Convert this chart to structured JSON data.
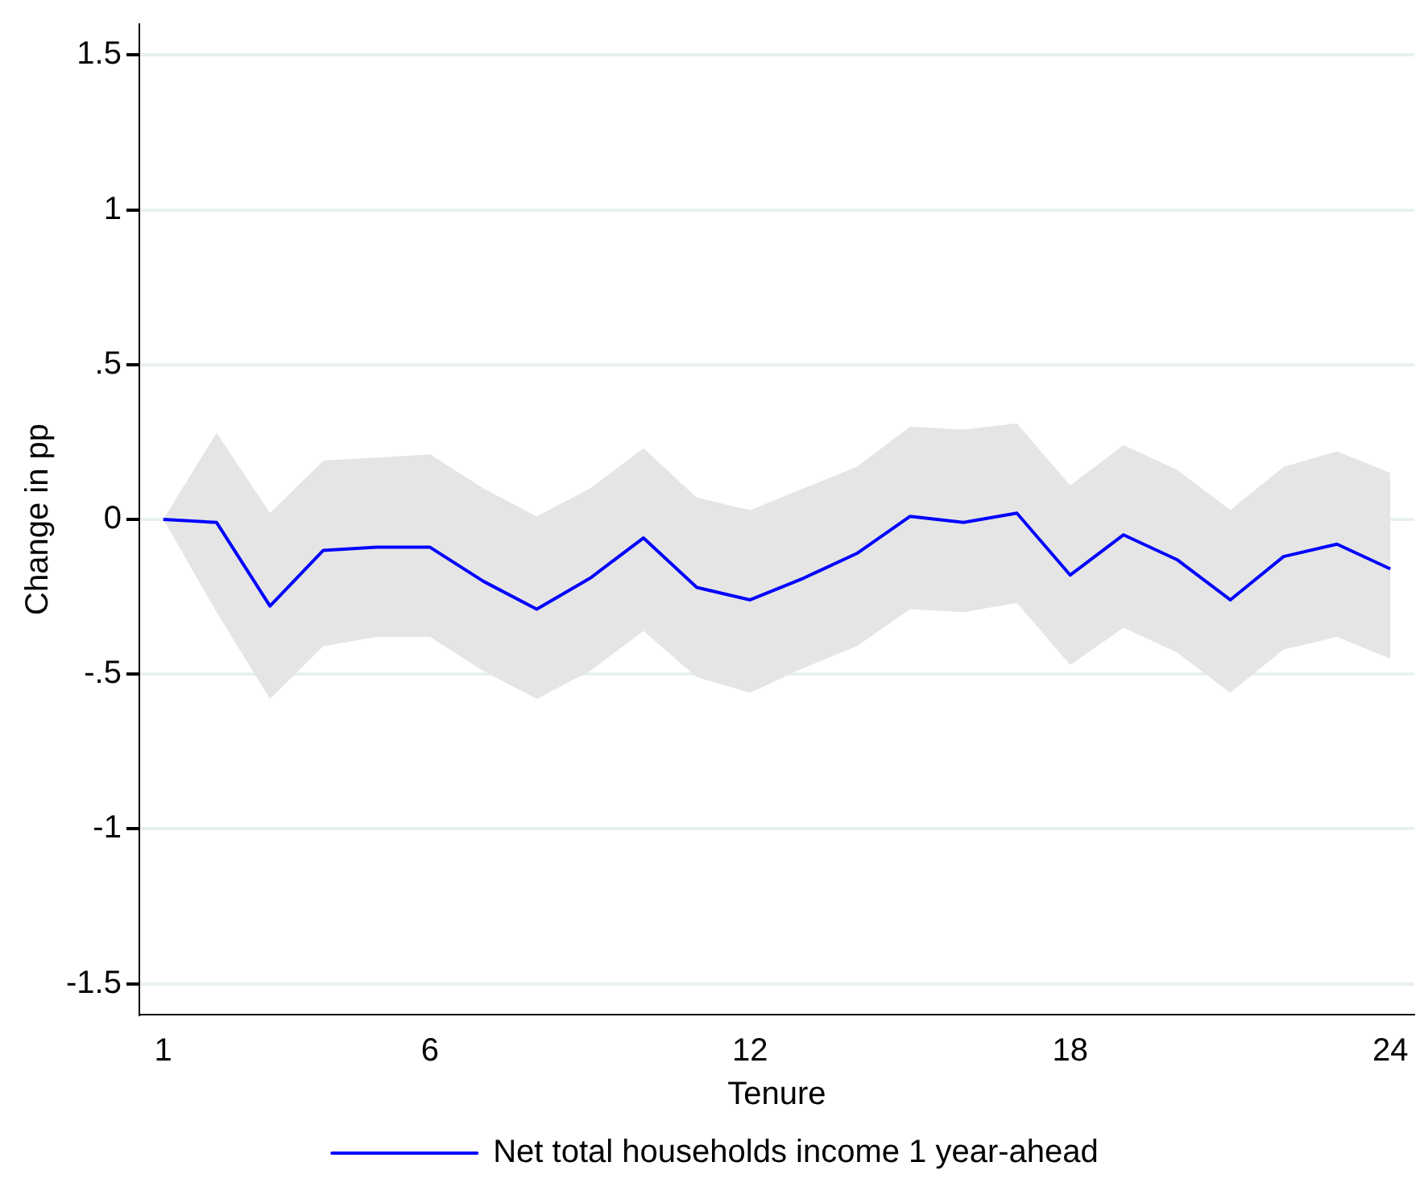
{
  "chart_data": {
    "type": "line",
    "xlabel": "Tenure",
    "ylabel": "Change in pp",
    "x": [
      1,
      2,
      3,
      4,
      5,
      6,
      7,
      8,
      9,
      10,
      11,
      12,
      13,
      14,
      15,
      16,
      17,
      18,
      19,
      20,
      21,
      22,
      23,
      24
    ],
    "series": [
      {
        "name": "Net total households income 1 year-ahead",
        "color": "#0000ff",
        "values": [
          0,
          -0.01,
          -0.28,
          -0.1,
          -0.09,
          -0.09,
          -0.2,
          -0.29,
          -0.19,
          -0.06,
          -0.22,
          -0.26,
          -0.19,
          -0.11,
          0.01,
          -0.01,
          0.02,
          -0.18,
          -0.05,
          -0.13,
          -0.26,
          -0.12,
          -0.08,
          -0.16
        ],
        "upper": [
          0,
          0.28,
          0.02,
          0.19,
          0.2,
          0.21,
          0.1,
          0.01,
          0.1,
          0.23,
          0.07,
          0.03,
          0.1,
          0.17,
          0.3,
          0.29,
          0.31,
          0.11,
          0.24,
          0.16,
          0.03,
          0.17,
          0.22,
          0.15
        ],
        "lower": [
          0,
          -0.3,
          -0.58,
          -0.41,
          -0.38,
          -0.38,
          -0.49,
          -0.58,
          -0.49,
          -0.36,
          -0.51,
          -0.56,
          -0.48,
          -0.41,
          -0.29,
          -0.3,
          -0.27,
          -0.47,
          -0.35,
          -0.43,
          -0.56,
          -0.42,
          -0.38,
          -0.45
        ]
      }
    ],
    "xlim": [
      0.55,
      24.45
    ],
    "xticks": [
      1,
      6,
      12,
      18,
      24
    ],
    "ylim": [
      -1.6,
      1.6
    ],
    "yticks": [
      {
        "value": -1.5,
        "label": "-1.5"
      },
      -1,
      {
        "value": -0.5,
        "label": "-.5"
      },
      0,
      {
        "value": 0.5,
        "label": ".5"
      },
      1,
      1.5
    ],
    "grid": "y",
    "legend": "bottom",
    "marker": "none",
    "line_style": "solid"
  }
}
